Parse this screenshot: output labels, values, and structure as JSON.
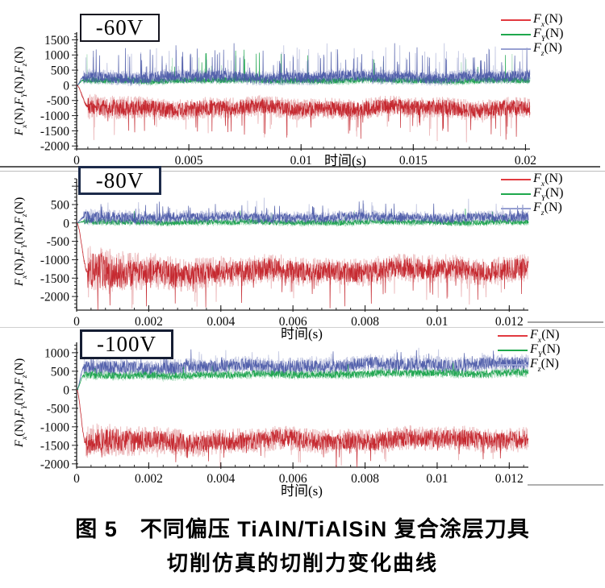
{
  "figure": {
    "caption_line1": "图 5　不同偏压 TiAlN/TiAlSiN 复合涂层刀具",
    "caption_line2": "切削仿真的切削力变化曲线"
  },
  "chart_data": [
    {
      "type": "line",
      "title": "-60V",
      "xlabel": "时间(s)",
      "ylabel": "F_x(N),F_Y(N),F_z(N)",
      "xlim": [
        0,
        0.0202
      ],
      "ylim": [
        -2100,
        1750
      ],
      "grid": false,
      "legend_position": "top-right-outside",
      "xticks": [
        {
          "v": 0,
          "label": "0"
        },
        {
          "v": 0.005,
          "label": "0.005"
        },
        {
          "v": 0.01,
          "label": "0.01"
        },
        {
          "v": 0.015,
          "label": "0.015"
        },
        {
          "v": 0.02,
          "label": "0.02"
        }
      ],
      "yticks": [
        {
          "v": 1500,
          "label": "1500"
        },
        {
          "v": 1000,
          "label": "1000"
        },
        {
          "v": 500,
          "label": "500"
        },
        {
          "v": 0,
          "label": "0"
        },
        {
          "v": -500,
          "label": "-500"
        },
        {
          "v": -1000,
          "label": "-1000"
        },
        {
          "v": -1500,
          "label": "-1500"
        },
        {
          "v": -2000,
          "label": "-2000"
        }
      ],
      "legend": [
        {
          "label": "F_x(N)",
          "color": "#e23a40"
        },
        {
          "label": "F_Y(N)",
          "color": "#1fa84d"
        },
        {
          "label": "F_z(N)",
          "color": "#98a1d2"
        }
      ],
      "series": [
        {
          "name": "F_x(N)",
          "color": "#c32128",
          "baseline": -750,
          "noise": 250,
          "spike_rate": 0.02,
          "spike_amp": 1000,
          "spike_dir": -1,
          "settle": 0.0005,
          "early_noise": 0.2,
          "trend": [
            0,
            0
          ],
          "seed": 101
        },
        {
          "name": "F_Y(N)",
          "color": "#17a24a",
          "baseline": 160,
          "noise": 95,
          "spike_rate": 0.005,
          "spike_amp": 1000,
          "spike_dir": 1,
          "settle": 0.0003,
          "early_noise": 0,
          "trend": [
            0,
            0
          ],
          "seed": 102
        },
        {
          "name": "F_z(N)",
          "color": "#4c5aa8",
          "baseline": 270,
          "noise": 180,
          "spike_rate": 0.035,
          "spike_amp": 950,
          "spike_dir": 1,
          "settle": 0.0003,
          "early_noise": 0,
          "trend": [
            0,
            0
          ],
          "seed": 103
        }
      ]
    },
    {
      "type": "line",
      "title": "-80V",
      "xlabel": "时间(s)",
      "ylabel": "F_x(N),F_Y(N),F_z(N)",
      "xlim": [
        0,
        0.01253
      ],
      "ylim": [
        -2370,
        1200
      ],
      "grid": false,
      "legend_position": "top-right-outside",
      "xticks": [
        {
          "v": 0,
          "label": "0"
        },
        {
          "v": 0.002,
          "label": "0.002"
        },
        {
          "v": 0.004,
          "label": "0.004"
        },
        {
          "v": 0.006,
          "label": "0.006"
        },
        {
          "v": 0.008,
          "label": "0.008"
        },
        {
          "v": 0.01,
          "label": "0.01"
        },
        {
          "v": 0.012,
          "label": "0.012"
        }
      ],
      "yticks": [
        {
          "v": 500,
          "label": "500"
        },
        {
          "v": 0,
          "label": "0"
        },
        {
          "v": -500,
          "label": "-500"
        },
        {
          "v": -1000,
          "label": "-1000"
        },
        {
          "v": -1500,
          "label": "-1500"
        },
        {
          "v": -2000,
          "label": "-2000"
        }
      ],
      "legend": [
        {
          "label": "F_x(N)",
          "color": "#e23a40"
        },
        {
          "label": "F_Y(N)",
          "color": "#1fa84d"
        },
        {
          "label": "F_z(N)",
          "color": "#98a1d2"
        }
      ],
      "series": [
        {
          "name": "F_x(N)",
          "color": "#c32128",
          "baseline": -1280,
          "noise": 280,
          "spike_rate": 0.02,
          "spike_amp": 750,
          "spike_dir": -1,
          "settle": 0.0003,
          "early_noise": 0.9,
          "trend": [
            -90,
            40
          ],
          "seed": 201
        },
        {
          "name": "F_Y(N)",
          "color": "#17a24a",
          "baseline": 20,
          "noise": 75,
          "spike_rate": 0.004,
          "spike_amp": 380,
          "spike_dir": 1,
          "settle": 0.0002,
          "early_noise": 0,
          "trend": [
            0,
            0
          ],
          "seed": 202
        },
        {
          "name": "F_z(N)",
          "color": "#4c5aa8",
          "baseline": 150,
          "noise": 125,
          "spike_rate": 0.02,
          "spike_amp": 430,
          "spike_dir": 1,
          "settle": 0.0002,
          "early_noise": 0.3,
          "trend": [
            0,
            0
          ],
          "seed": 203
        }
      ]
    },
    {
      "type": "line",
      "title": "-100V",
      "xlabel": "时间(s)",
      "ylabel": "F_x(N),F_Y(N),F_z(N)",
      "xlim": [
        0,
        0.01253
      ],
      "ylim": [
        -2090,
        1280
      ],
      "grid": false,
      "legend_position": "top-right-inside",
      "xticks": [
        {
          "v": 0,
          "label": "0"
        },
        {
          "v": 0.002,
          "label": "0.002"
        },
        {
          "v": 0.004,
          "label": "0.004"
        },
        {
          "v": 0.006,
          "label": "0.006"
        },
        {
          "v": 0.008,
          "label": "0.008"
        },
        {
          "v": 0.01,
          "label": "0.01"
        },
        {
          "v": 0.012,
          "label": "0.012"
        }
      ],
      "yticks": [
        {
          "v": 1000,
          "label": "1000"
        },
        {
          "v": 500,
          "label": "500"
        },
        {
          "v": 0,
          "label": "0"
        },
        {
          "v": -500,
          "label": "-500"
        },
        {
          "v": -1000,
          "label": "-1000"
        },
        {
          "v": -1500,
          "label": "-1500"
        },
        {
          "v": -2000,
          "label": "-2000"
        }
      ],
      "legend": [
        {
          "label": "F_x(N)",
          "color": "#e23a40"
        },
        {
          "label": "F_Y(N)",
          "color": "#1fa84d"
        },
        {
          "label": "F_z(N)",
          "color": "#98a1d2"
        }
      ],
      "series": [
        {
          "name": "F_x(N)",
          "color": "#c32128",
          "baseline": -1360,
          "noise": 240,
          "spike_rate": 0.015,
          "spike_amp": 550,
          "spike_dir": -1,
          "settle": 0.00025,
          "early_noise": 0.5,
          "trend": [
            -60,
            40
          ],
          "seed": 301
        },
        {
          "name": "F_Y(N)",
          "color": "#17a24a",
          "baseline": 430,
          "noise": 95,
          "spike_rate": 0.006,
          "spike_amp": 300,
          "spike_dir": 1,
          "settle": 0.0002,
          "early_noise": 0,
          "trend": [
            -60,
            30
          ],
          "seed": 302
        },
        {
          "name": "F_z(N)",
          "color": "#4c5aa8",
          "baseline": 650,
          "noise": 175,
          "spike_rate": 0.02,
          "spike_amp": 330,
          "spike_dir": 1,
          "settle": 0.0002,
          "early_noise": 0,
          "trend": [
            -70,
            60
          ],
          "seed": 303
        }
      ]
    }
  ]
}
